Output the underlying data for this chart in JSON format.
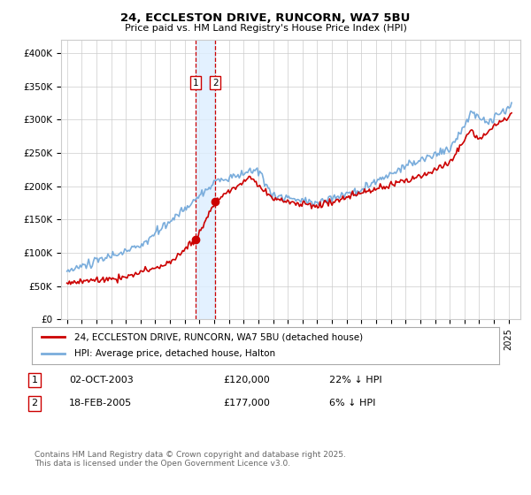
{
  "title1": "24, ECCLESTON DRIVE, RUNCORN, WA7 5BU",
  "title2": "Price paid vs. HM Land Registry's House Price Index (HPI)",
  "ylim": [
    0,
    420000
  ],
  "yticks": [
    0,
    50000,
    100000,
    150000,
    200000,
    250000,
    300000,
    350000,
    400000
  ],
  "ytick_labels": [
    "£0",
    "£50K",
    "£100K",
    "£150K",
    "£200K",
    "£250K",
    "£300K",
    "£350K",
    "£400K"
  ],
  "legend1": "24, ECCLESTON DRIVE, RUNCORN, WA7 5BU (detached house)",
  "legend2": "HPI: Average price, detached house, Halton",
  "transaction1_label": "1",
  "transaction1_date": "02-OCT-2003",
  "transaction1_price": "£120,000",
  "transaction1_hpi": "22% ↓ HPI",
  "transaction2_label": "2",
  "transaction2_date": "18-FEB-2005",
  "transaction2_price": "£177,000",
  "transaction2_hpi": "6% ↓ HPI",
  "footer": "Contains HM Land Registry data © Crown copyright and database right 2025.\nThis data is licensed under the Open Government Licence v3.0.",
  "line1_color": "#cc0000",
  "line2_color": "#7aaddc",
  "shade_color": "#ddeeff",
  "vline_color": "#cc0000",
  "grid_color": "#cccccc",
  "bg_color": "#ffffff",
  "trans1_year": 2003.75,
  "trans2_year": 2005.08,
  "trans1_price_val": 120000,
  "trans2_price_val": 177000,
  "xlim_left": 1994.6,
  "xlim_right": 2025.8
}
